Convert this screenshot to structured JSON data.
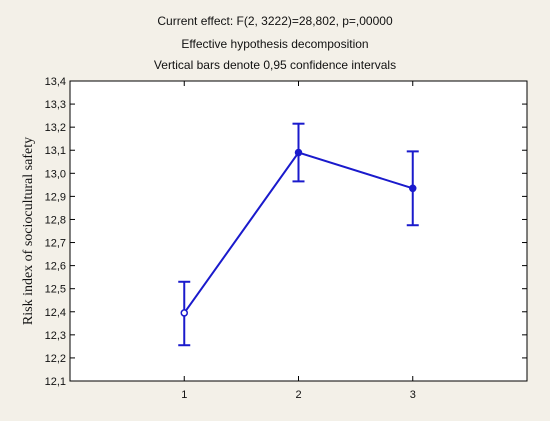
{
  "chart_data": {
    "type": "line",
    "title_lines": [
      "Current effect: F(2, 3222)=28,802, p=,00000",
      "Effective hypothesis decomposition",
      "Vertical bars denote 0,95 confidence intervals"
    ],
    "xlabel": "",
    "ylabel": "Risk index of sociocultural safety",
    "categories": [
      "1",
      "2",
      "3"
    ],
    "series": [
      {
        "values": [
          12.395,
          13.09,
          12.935
        ],
        "ci_low": [
          12.255,
          12.965,
          12.775
        ],
        "ci_high": [
          12.53,
          13.215,
          13.095
        ]
      }
    ],
    "ylim": [
      12.1,
      13.4
    ],
    "yticks": [
      "12,1",
      "12,2",
      "12,3",
      "12,4",
      "12,5",
      "12,6",
      "12,7",
      "12,8",
      "12,9",
      "13,0",
      "13,1",
      "13,2",
      "13,3",
      "13,4"
    ],
    "xlim": [
      0,
      4
    ],
    "grid": false,
    "colors": {
      "series": "#1a1acc",
      "background": "#f3f0e8",
      "plot": "#ffffff"
    }
  }
}
